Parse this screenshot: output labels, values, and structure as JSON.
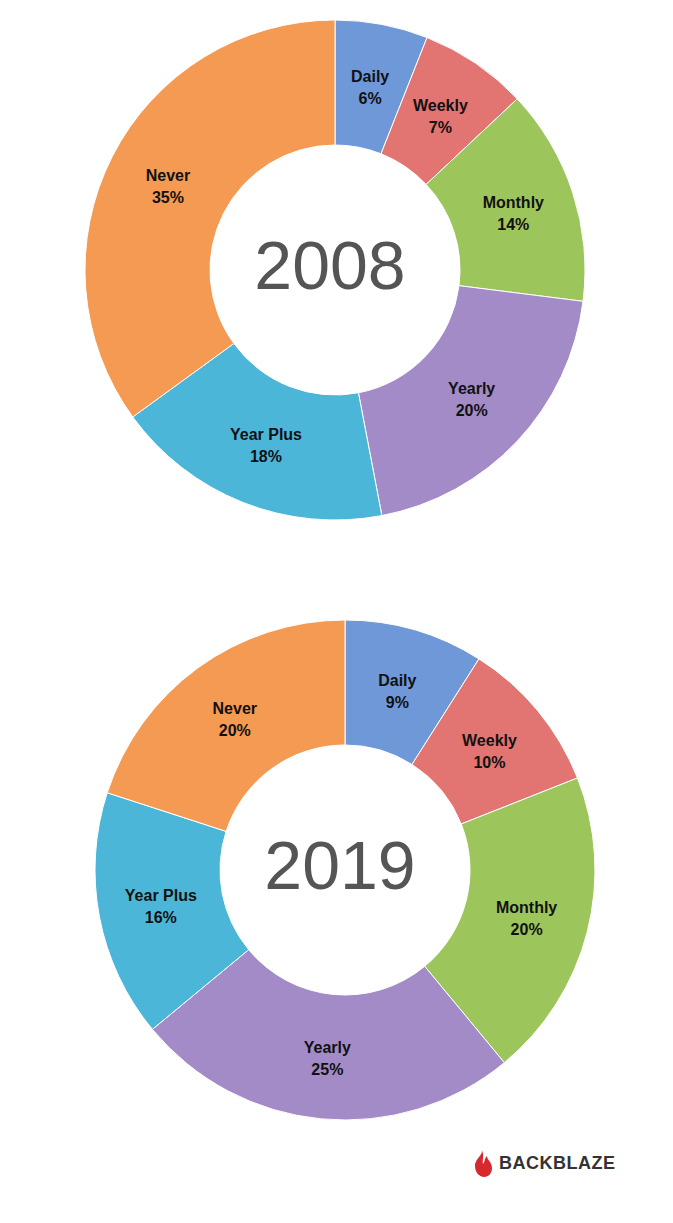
{
  "chart_data": [
    {
      "type": "pie",
      "title": "2008",
      "categories": [
        "Daily",
        "Weekly",
        "Monthly",
        "Yearly",
        "Year Plus",
        "Never"
      ],
      "values": [
        6,
        7,
        14,
        20,
        18,
        35
      ],
      "value_labels": [
        "6%",
        "7%",
        "14%",
        "20%",
        "18%",
        "35%"
      ],
      "colors": [
        "#6f98d8",
        "#e27472",
        "#9cc65c",
        "#a28bc6",
        "#4cb6d8",
        "#f59a52"
      ],
      "data_labels": true
    },
    {
      "type": "pie",
      "title": "2019",
      "categories": [
        "Daily",
        "Weekly",
        "Monthly",
        "Yearly",
        "Year Plus",
        "Never"
      ],
      "values": [
        9,
        10,
        20,
        25,
        16,
        20
      ],
      "value_labels": [
        "9%",
        "10%",
        "20%",
        "25%",
        "16%",
        "20%"
      ],
      "colors": [
        "#6f98d8",
        "#e27472",
        "#9cc65c",
        "#a28bc6",
        "#4cb6d8",
        "#f59a52"
      ],
      "data_labels": true
    }
  ],
  "footer": {
    "text": "BACKBLAZE"
  }
}
